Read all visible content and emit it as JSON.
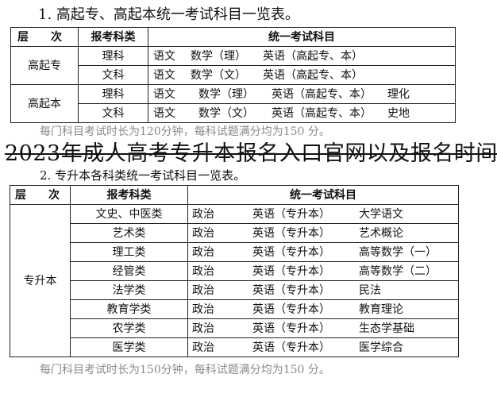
{
  "section1": {
    "title": "1. 高起专、高起本统一考试科目一览表。",
    "headers": [
      "层　　次",
      "报考科类",
      "统一考试科目"
    ],
    "groups": [
      {
        "level": "高起专",
        "rows": [
          {
            "category": "理科",
            "subjects": [
              "语文",
              "数学（理）",
              "英语（高起专、本）",
              ""
            ]
          },
          {
            "category": "文科",
            "subjects": [
              "语文",
              "数学（文）",
              "英语（高起专、本）",
              ""
            ]
          }
        ]
      },
      {
        "level": "高起本",
        "rows": [
          {
            "category": "理科",
            "subjects": [
              "语文",
              "数学（理）",
              "英语（高起专、本）",
              "理化"
            ]
          },
          {
            "category": "文科",
            "subjects": [
              "语文",
              "数学（文）",
              "英语（高起专、本）",
              "史地"
            ]
          }
        ]
      }
    ],
    "note": "每门科目考试时长为120分钟，每科试题满分均为150 分。"
  },
  "overlay_title": "2023年成人高考专升本报名入口官网以及报名时间",
  "section2": {
    "title": "2. 专升本各科类统一考试科目一览表。",
    "headers": [
      "层　　次",
      "报考科类",
      "统一考试科目"
    ],
    "level": "专升本",
    "rows": [
      {
        "category": "文史、中医类",
        "subjects": [
          "政治",
          "英语（专升本）",
          "大学语文"
        ]
      },
      {
        "category": "艺术类",
        "subjects": [
          "政治",
          "英语（专升本）",
          "艺术概论"
        ]
      },
      {
        "category": "理工类",
        "subjects": [
          "政治",
          "英语（专升本）",
          "高等数学（一）"
        ]
      },
      {
        "category": "经管类",
        "subjects": [
          "政治",
          "英语（专升本）",
          "高等数学（二）"
        ]
      },
      {
        "category": "法学类",
        "subjects": [
          "政治",
          "英语（专升本）",
          "民法"
        ]
      },
      {
        "category": "教育学类",
        "subjects": [
          "政治",
          "英语（专升本）",
          "教育理论"
        ]
      },
      {
        "category": "农学类",
        "subjects": [
          "政治",
          "英语（专升本）",
          "生态学基础"
        ]
      },
      {
        "category": "医学类",
        "subjects": [
          "政治",
          "英语（专升本）",
          "医学综合"
        ]
      }
    ],
    "note": "每门科目考试时长为150分钟，每科试题满分均为150 分。"
  }
}
